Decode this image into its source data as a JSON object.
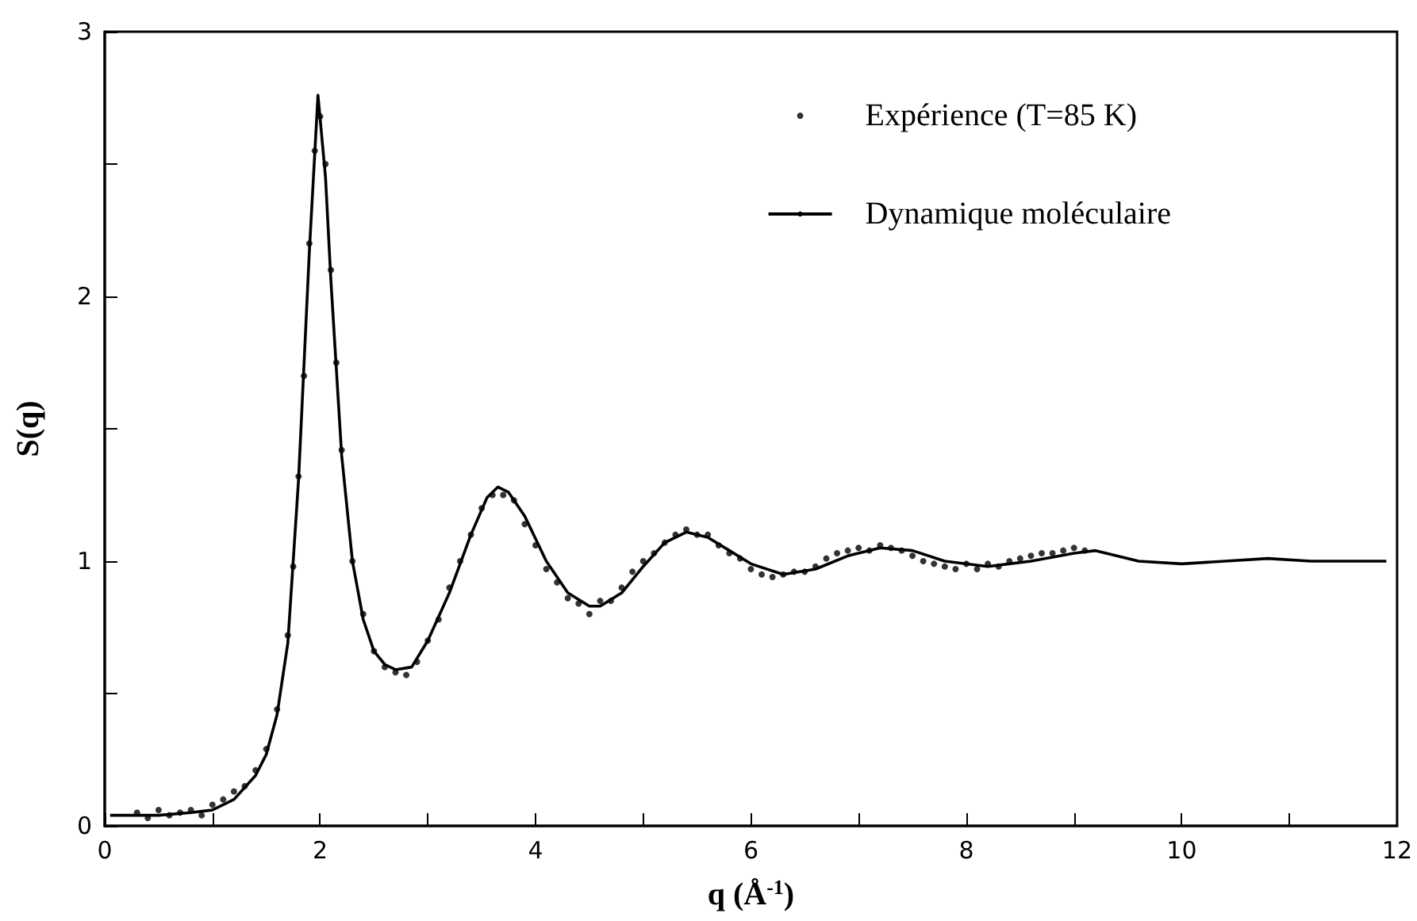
{
  "chart_data": {
    "type": "line",
    "xlabel": "q (Å$^{-1}$)",
    "ylabel": "S(q)",
    "xlim": [
      0,
      12
    ],
    "xticks": [
      0,
      {
        "value": 1,
        "label": null
      },
      2,
      {
        "value": 3,
        "label": null
      },
      4,
      {
        "value": 5,
        "label": null
      },
      6,
      {
        "value": 7,
        "label": null
      },
      8,
      {
        "value": 9,
        "label": null
      },
      10,
      {
        "value": 11,
        "label": null
      },
      12
    ],
    "ylim": [
      0,
      3
    ],
    "yticks": [
      0,
      {
        "value": 0.5,
        "label": null
      },
      1,
      {
        "value": 1.5,
        "label": null
      },
      2,
      {
        "value": 2.5,
        "label": null
      },
      3
    ],
    "grid": false,
    "legend": "top right",
    "series": [
      {
        "name": "Expérience (T=85 K)",
        "type": "scatter",
        "marker": "circle",
        "color": "#000000",
        "x": [
          0.3,
          0.4,
          0.5,
          0.6,
          0.7,
          0.8,
          0.9,
          1.0,
          1.1,
          1.2,
          1.3,
          1.4,
          1.5,
          1.6,
          1.7,
          1.75,
          1.8,
          1.85,
          1.9,
          1.95,
          2.0,
          2.05,
          2.1,
          2.15,
          2.2,
          2.3,
          2.4,
          2.5,
          2.6,
          2.7,
          2.8,
          2.9,
          3.0,
          3.1,
          3.2,
          3.3,
          3.4,
          3.5,
          3.6,
          3.7,
          3.8,
          3.9,
          4.0,
          4.1,
          4.2,
          4.3,
          4.4,
          4.5,
          4.6,
          4.7,
          4.8,
          4.9,
          5.0,
          5.1,
          5.2,
          5.3,
          5.4,
          5.5,
          5.6,
          5.7,
          5.8,
          5.9,
          6.0,
          6.1,
          6.2,
          6.3,
          6.4,
          6.5,
          6.6,
          6.7,
          6.8,
          6.9,
          7.0,
          7.1,
          7.2,
          7.3,
          7.4,
          7.5,
          7.6,
          7.7,
          7.8,
          7.9,
          8.0,
          8.1,
          8.2,
          8.3,
          8.4,
          8.5,
          8.6,
          8.7,
          8.8,
          8.9,
          9.0,
          9.1
        ],
        "values": [
          0.05,
          0.03,
          0.06,
          0.04,
          0.05,
          0.06,
          0.04,
          0.08,
          0.1,
          0.13,
          0.15,
          0.21,
          0.29,
          0.44,
          0.72,
          0.98,
          1.32,
          1.7,
          2.2,
          2.55,
          2.68,
          2.5,
          2.1,
          1.75,
          1.42,
          1.0,
          0.8,
          0.66,
          0.6,
          0.58,
          0.57,
          0.62,
          0.7,
          0.78,
          0.9,
          1.0,
          1.1,
          1.2,
          1.25,
          1.25,
          1.23,
          1.14,
          1.06,
          0.97,
          0.92,
          0.86,
          0.84,
          0.8,
          0.85,
          0.85,
          0.9,
          0.96,
          1.0,
          1.03,
          1.07,
          1.1,
          1.12,
          1.1,
          1.1,
          1.06,
          1.03,
          1.01,
          0.97,
          0.95,
          0.94,
          0.95,
          0.96,
          0.96,
          0.98,
          1.01,
          1.03,
          1.04,
          1.05,
          1.04,
          1.06,
          1.05,
          1.04,
          1.02,
          1.0,
          0.99,
          0.98,
          0.97,
          0.99,
          0.97,
          0.99,
          0.98,
          1.0,
          1.01,
          1.02,
          1.03,
          1.03,
          1.04,
          1.05,
          1.04
        ]
      },
      {
        "name": "Dynamique moléculaire",
        "marker": "none",
        "line_style": "solid",
        "color": "#000000",
        "x": [
          0.05,
          0.5,
          0.8,
          1.0,
          1.2,
          1.4,
          1.5,
          1.6,
          1.7,
          1.8,
          1.9,
          1.98,
          2.05,
          2.1,
          2.2,
          2.3,
          2.4,
          2.5,
          2.6,
          2.7,
          2.85,
          3.0,
          3.2,
          3.4,
          3.55,
          3.65,
          3.75,
          3.9,
          4.1,
          4.3,
          4.5,
          4.6,
          4.8,
          5.0,
          5.2,
          5.4,
          5.6,
          5.8,
          6.0,
          6.3,
          6.6,
          6.9,
          7.2,
          7.5,
          7.8,
          8.2,
          8.6,
          9.0,
          9.2,
          9.6,
          10.0,
          10.4,
          10.8,
          11.2,
          11.9
        ],
        "values": [
          0.04,
          0.04,
          0.05,
          0.06,
          0.1,
          0.19,
          0.27,
          0.42,
          0.69,
          1.31,
          2.17,
          2.76,
          2.45,
          2.06,
          1.4,
          1.0,
          0.78,
          0.66,
          0.61,
          0.59,
          0.6,
          0.7,
          0.88,
          1.1,
          1.24,
          1.28,
          1.26,
          1.17,
          1.0,
          0.88,
          0.83,
          0.83,
          0.88,
          0.98,
          1.07,
          1.11,
          1.09,
          1.04,
          0.99,
          0.95,
          0.97,
          1.02,
          1.05,
          1.04,
          1.0,
          0.98,
          1.0,
          1.03,
          1.04,
          1.0,
          0.99,
          1.0,
          1.01,
          1.0,
          1.0
        ]
      }
    ]
  }
}
